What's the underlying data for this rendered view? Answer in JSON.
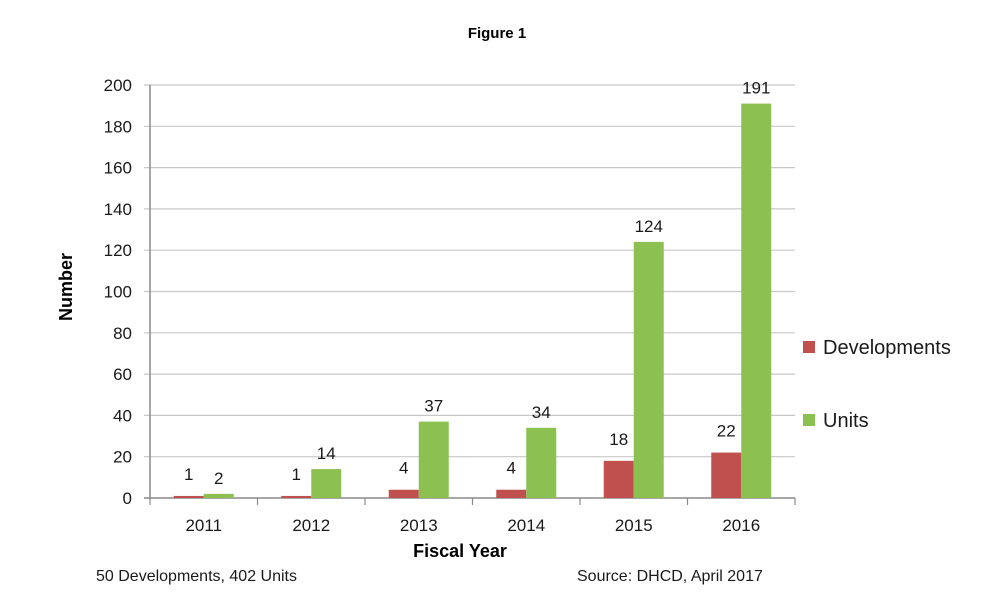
{
  "chart_data": {
    "type": "bar",
    "title": "Figure 1",
    "xlabel": "Fiscal Year",
    "ylabel": "Number",
    "categories": [
      "2011",
      "2012",
      "2013",
      "2014",
      "2015",
      "2016"
    ],
    "series": [
      {
        "name": "Developments",
        "values": [
          1,
          1,
          4,
          4,
          18,
          22
        ],
        "color": "#c0504d"
      },
      {
        "name": "Units",
        "values": [
          2,
          14,
          37,
          34,
          124,
          191
        ],
        "color": "#8cc152"
      }
    ],
    "ylim": [
      0,
      200
    ],
    "yticks": [
      0,
      20,
      40,
      60,
      80,
      100,
      120,
      140,
      160,
      180,
      200
    ],
    "grid": true,
    "legend": "right"
  },
  "footnotes": {
    "left": "50 Developments, 402 Units",
    "right": "Source: DHCD, April 2017"
  }
}
